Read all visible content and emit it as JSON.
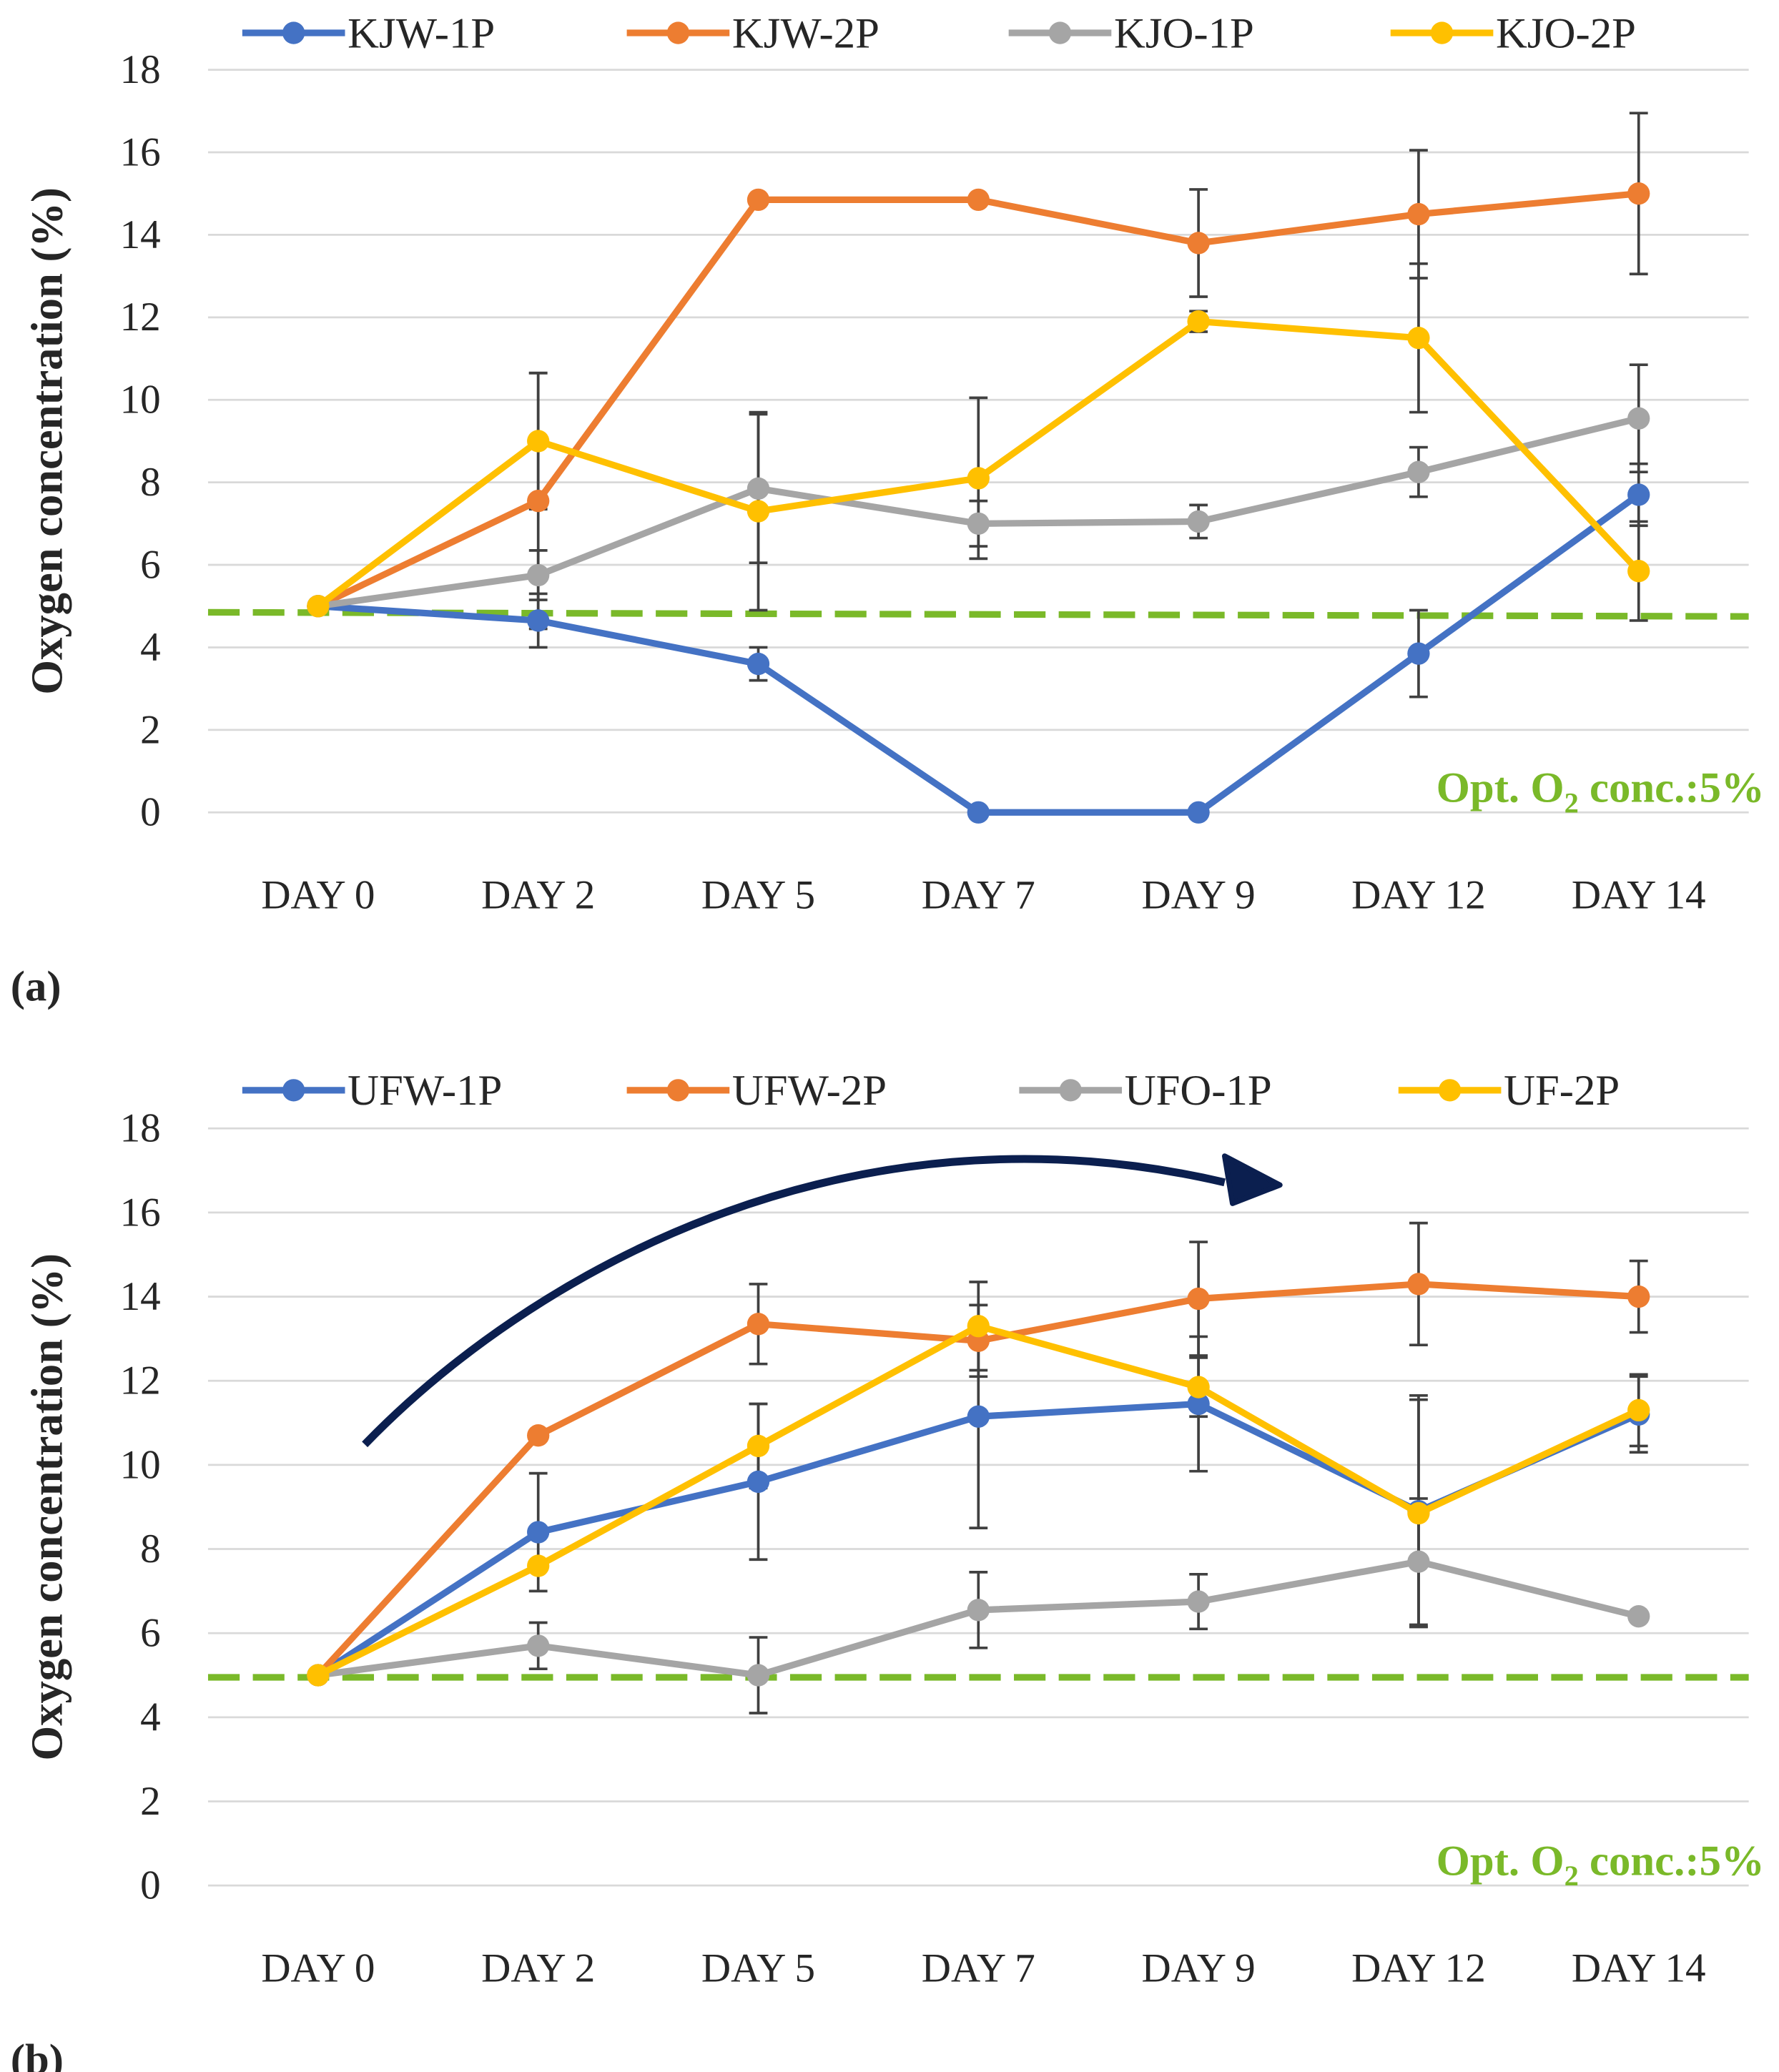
{
  "colors": {
    "series": [
      "#4472C4",
      "#ED7D31",
      "#A5A5A5",
      "#FFC000"
    ],
    "reference_line": "#7AB929",
    "grid": "#D9D9D9",
    "error_bar": "#404040",
    "arrow": "#0B1F4F"
  },
  "chart_data": [
    {
      "type": "line",
      "panel_label": "(a)",
      "ylabel": "Oxygen concentration (%)",
      "ylim": [
        0,
        18
      ],
      "yticks": [
        "0",
        "2",
        "4",
        "6",
        "8",
        "10",
        "12",
        "14",
        "16",
        "18"
      ],
      "categories": [
        "DAY 0",
        "DAY 2",
        "DAY 5",
        "DAY 7",
        "DAY 9",
        "DAY 12",
        "DAY 14"
      ],
      "grid": true,
      "legend_position": "top",
      "reference_line": {
        "value": 4.85,
        "value_end": 4.75,
        "label_prefix": "Opt. O",
        "label_sub": "2",
        "label_suffix": " conc.:5%"
      },
      "series": [
        {
          "name": "KJW-1P",
          "values": [
            5.0,
            4.65,
            3.6,
            0.0,
            0.0,
            3.85,
            7.7
          ],
          "errors": [
            0,
            0.65,
            0.4,
            0,
            0,
            1.05,
            0.75
          ]
        },
        {
          "name": "KJW-2P",
          "values": [
            5.0,
            7.55,
            14.85,
            14.85,
            13.8,
            14.5,
            15.0
          ],
          "errors": [
            0,
            3.1,
            0,
            0,
            1.3,
            1.55,
            1.95
          ]
        },
        {
          "name": "KJO-1P",
          "values": [
            5.0,
            5.75,
            7.85,
            7.0,
            7.05,
            8.25,
            9.55
          ],
          "errors": [
            0,
            0.6,
            1.8,
            0.55,
            0.4,
            0.6,
            1.3
          ]
        },
        {
          "name": "KJO-2P",
          "values": [
            5.0,
            9.0,
            7.3,
            8.1,
            11.9,
            11.5,
            5.85
          ],
          "errors": [
            0,
            1.65,
            2.4,
            1.95,
            0.25,
            1.8,
            1.2
          ]
        }
      ]
    },
    {
      "type": "line",
      "panel_label": "(b)",
      "ylabel": "Oxygen concentration (%)",
      "ylim": [
        0,
        18
      ],
      "yticks": [
        "0",
        "2",
        "4",
        "6",
        "8",
        "10",
        "12",
        "14",
        "16",
        "18"
      ],
      "categories": [
        "DAY 0",
        "DAY 2",
        "DAY 5",
        "DAY 7",
        "DAY 9",
        "DAY 12",
        "DAY 14"
      ],
      "grid": true,
      "legend_position": "top",
      "reference_line": {
        "value": 4.95,
        "value_end": 4.95,
        "label_prefix": "Opt. O",
        "label_sub": "2",
        "label_suffix": " conc.:5%"
      },
      "annotation": "increasing-trend-arrow",
      "series": [
        {
          "name": "UFW-1P",
          "values": [
            5.0,
            8.4,
            9.6,
            11.15,
            11.45,
            8.9,
            11.2
          ],
          "errors": [
            0,
            1.4,
            1.85,
            2.65,
            1.6,
            2.75,
            0.9
          ]
        },
        {
          "name": "UFW-2P",
          "values": [
            5.0,
            10.7,
            13.35,
            12.95,
            13.95,
            14.3,
            14.0
          ],
          "errors": [
            0,
            0,
            0.95,
            0.85,
            1.35,
            1.45,
            0.85
          ]
        },
        {
          "name": "UFO-1P",
          "values": [
            5.0,
            5.7,
            5.0,
            6.55,
            6.75,
            7.7,
            6.4
          ],
          "errors": [
            0,
            0.55,
            0.9,
            0.9,
            0.65,
            1.5,
            0
          ]
        },
        {
          "name": "UF-2P",
          "values": [
            5.0,
            7.6,
            10.45,
            13.3,
            11.85,
            8.85,
            11.3
          ],
          "errors": [
            0,
            0,
            1.0,
            1.05,
            0.7,
            2.7,
            0.85
          ]
        }
      ]
    }
  ]
}
